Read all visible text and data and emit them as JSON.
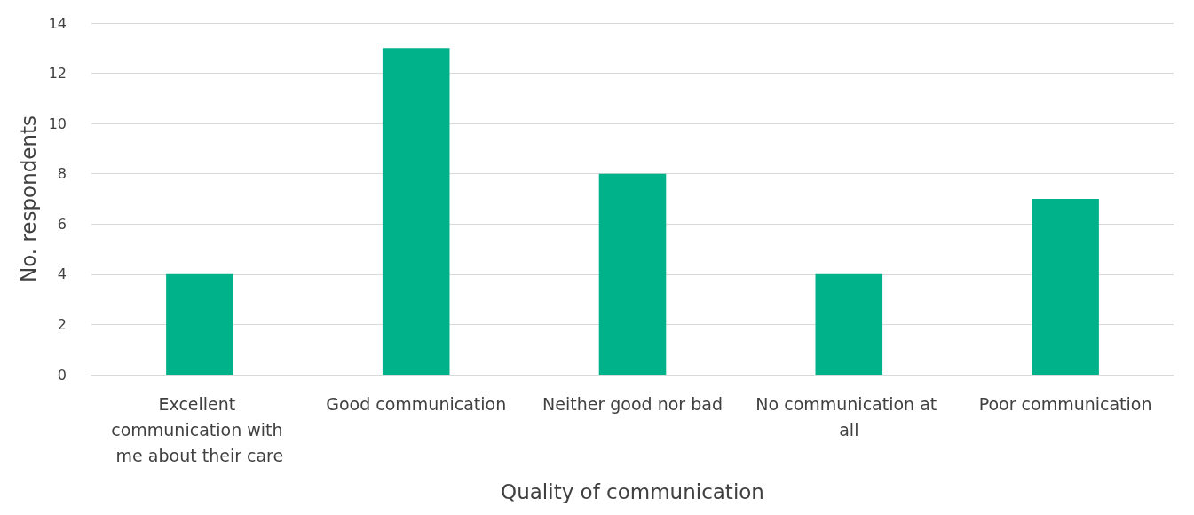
{
  "chart_data": {
    "type": "bar",
    "xlabel": "Quality of communication",
    "ylabel": "No. respondents",
    "categories": [
      "Excellent communication with me about their care",
      "Good communication",
      "Neither good nor bad",
      "No communication at all",
      "Poor communication"
    ],
    "values": [
      4,
      13,
      8,
      4,
      7
    ],
    "color": "#00b28a",
    "ylim": [
      0,
      14
    ],
    "yticks": [
      0,
      2,
      4,
      6,
      8,
      10,
      12,
      14
    ],
    "grid": "y"
  }
}
